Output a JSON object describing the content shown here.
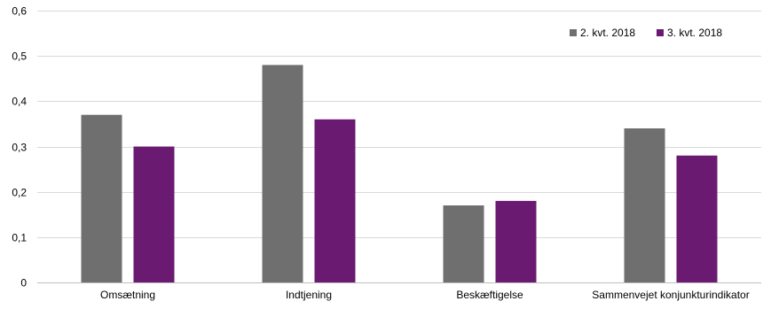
{
  "chart_data": {
    "type": "bar",
    "categories": [
      "Omsætning",
      "Indtjening",
      "Beskæftigelse",
      "Sammenvejet konjunkturindikator"
    ],
    "series": [
      {
        "name": "2. kvt. 2018",
        "color": "#6f6f6f",
        "values": [
          0.37,
          0.48,
          0.17,
          0.34
        ]
      },
      {
        "name": "3. kvt. 2018",
        "color": "#6b1a72",
        "values": [
          0.3,
          0.36,
          0.18,
          0.28
        ]
      }
    ],
    "ylim": [
      0,
      0.6
    ],
    "yticks": [
      0,
      0.1,
      0.2,
      0.3,
      0.4,
      0.5,
      0.6
    ],
    "ytick_labels": [
      "0",
      "0,1",
      "0,2",
      "0,3",
      "0,4",
      "0,5",
      "0,6"
    ],
    "grid": true,
    "gridline_color": "#d9d9d9",
    "legend_position": "top-right",
    "xlabel": "",
    "ylabel": ""
  }
}
